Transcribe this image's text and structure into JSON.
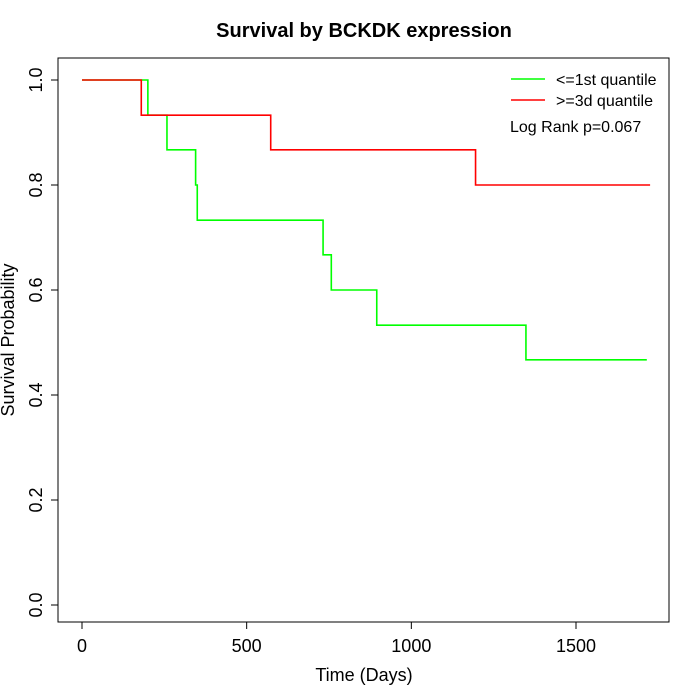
{
  "chart_data": {
    "type": "line",
    "title": "Survival by BCKDK expression",
    "xlabel": "Time (Days)",
    "ylabel": "Survival Probability",
    "xlim": [
      0,
      1750
    ],
    "ylim": [
      0,
      1.0
    ],
    "xticks": [
      0,
      500,
      1000,
      1500
    ],
    "yticks": [
      0.0,
      0.2,
      0.4,
      0.6,
      0.8,
      1.0
    ],
    "xtick_labels": [
      "0",
      "500",
      "1000",
      "1500"
    ],
    "ytick_labels": [
      "0.0",
      "0.2",
      "0.4",
      "0.6",
      "0.8",
      "1.0"
    ],
    "grid": false,
    "legend_position": "top-right",
    "annotation": "Log Rank p=0.067",
    "series": [
      {
        "name": "<=1st quantile",
        "color": "#00ff00",
        "step": true,
        "x": [
          0,
          200,
          258,
          345,
          350,
          732,
          757,
          895,
          1348,
          1715
        ],
        "y": [
          1.0,
          0.933,
          0.867,
          0.8,
          0.733,
          0.667,
          0.6,
          0.533,
          0.467,
          0.467
        ]
      },
      {
        "name": ">=3d quantile",
        "color": "#ff0000",
        "step": true,
        "x": [
          0,
          180,
          573,
          1195,
          1725
        ],
        "y": [
          1.0,
          0.933,
          0.867,
          0.8,
          0.8
        ]
      }
    ]
  }
}
